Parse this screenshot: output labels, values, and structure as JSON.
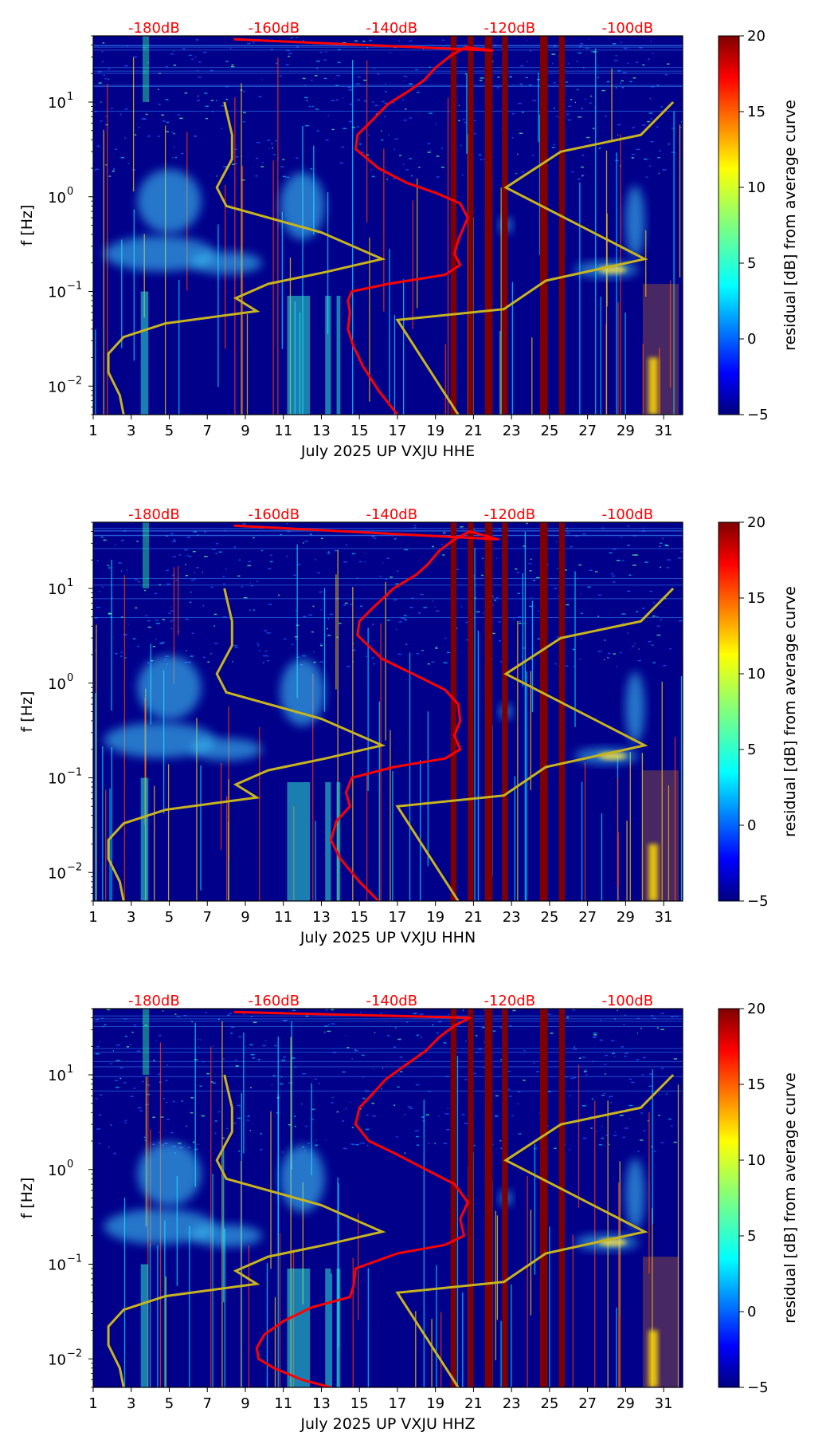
{
  "colors": {
    "spectrogram_background": "#00008b",
    "noise_curve": "#ff0000",
    "reference_model": "#c8b41e",
    "gap_band": "#800000",
    "colormap": "jet"
  },
  "colorbar": {
    "label": "residual [dB] from average curve",
    "min": -5,
    "max": 20,
    "ticks": [
      {
        "value": -5,
        "label": "−5"
      },
      {
        "value": 0,
        "label": "0"
      },
      {
        "value": 5,
        "label": "5"
      },
      {
        "value": 10,
        "label": "10"
      },
      {
        "value": 15,
        "label": "15"
      },
      {
        "value": 20,
        "label": "20"
      }
    ]
  },
  "chart_data": [
    {
      "type": "heatmap",
      "channel": "HHE",
      "title": "",
      "xlabel": "July 2025 UP VXJU  HHE",
      "ylabel": "f [Hz]",
      "xlim": [
        1,
        32
      ],
      "ylim": [
        0.005,
        50
      ],
      "yscale": "log",
      "xticks": [
        1,
        3,
        5,
        7,
        9,
        11,
        13,
        15,
        17,
        19,
        21,
        23,
        25,
        27,
        29,
        31
      ],
      "yticks": [
        {
          "value": 0.01,
          "base": "10",
          "exp": "−2"
        },
        {
          "value": 0.1,
          "base": "10",
          "exp": "−1"
        },
        {
          "value": 1,
          "base": "10",
          "exp": "0"
        },
        {
          "value": 10,
          "base": "10",
          "exp": "1"
        }
      ],
      "db_scale": [
        {
          "label": "-180dB",
          "day": 4.2
        },
        {
          "label": "-160dB",
          "day": 10.5
        },
        {
          "label": "-140dB",
          "day": 16.7
        },
        {
          "label": "-120dB",
          "day": 22.9
        },
        {
          "label": "-100dB",
          "day": 29.1
        }
      ],
      "gap_bands": [
        [
          19.8,
          20.1
        ],
        [
          20.7,
          21.0
        ],
        [
          21.6,
          22.0
        ],
        [
          22.5,
          22.8
        ],
        [
          24.5,
          24.9
        ],
        [
          25.5,
          25.8
        ]
      ],
      "noise_curve": [
        [
          17.0,
          0.005
        ],
        [
          16.0,
          0.009
        ],
        [
          15.2,
          0.016
        ],
        [
          14.7,
          0.026
        ],
        [
          14.4,
          0.04
        ],
        [
          14.5,
          0.06
        ],
        [
          14.4,
          0.08
        ],
        [
          14.6,
          0.1
        ],
        [
          16.5,
          0.12
        ],
        [
          19.5,
          0.15
        ],
        [
          20.3,
          0.19
        ],
        [
          20.0,
          0.25
        ],
        [
          20.2,
          0.35
        ],
        [
          20.7,
          0.6
        ],
        [
          20.3,
          0.85
        ],
        [
          19.0,
          1.1
        ],
        [
          17.5,
          1.4
        ],
        [
          16.0,
          2.0
        ],
        [
          14.8,
          3.2
        ],
        [
          14.9,
          4.5
        ],
        [
          15.7,
          6.5
        ],
        [
          16.5,
          9.5
        ],
        [
          17.7,
          13.5
        ],
        [
          18.4,
          17
        ],
        [
          19.0,
          23
        ],
        [
          19.8,
          31
        ],
        [
          20.6,
          38
        ],
        [
          22.0,
          35
        ],
        [
          8.4,
          46
        ]
      ],
      "reference_model": [
        [
          2.6,
          0.005
        ],
        [
          2.4,
          0.008
        ],
        [
          1.8,
          0.014
        ],
        [
          1.8,
          0.022
        ],
        [
          2.6,
          0.033
        ],
        [
          4.8,
          0.046
        ],
        [
          9.6,
          0.062
        ],
        [
          8.5,
          0.085
        ],
        [
          10.2,
          0.12
        ],
        [
          13.2,
          0.16
        ],
        [
          16.2,
          0.22
        ],
        [
          13.0,
          0.42
        ],
        [
          8.0,
          0.8
        ],
        [
          7.5,
          1.25
        ],
        [
          8.3,
          2.5
        ],
        [
          8.3,
          4.5
        ],
        [
          7.9,
          10
        ]
      ],
      "reference_model_right": [
        [
          20.2,
          0.005
        ],
        [
          17.0,
          0.05
        ],
        [
          22.6,
          0.065
        ],
        [
          24.8,
          0.13
        ],
        [
          30.0,
          0.22
        ],
        [
          22.7,
          1.25
        ],
        [
          25.6,
          3.0
        ],
        [
          29.8,
          4.5
        ],
        [
          31.5,
          10
        ]
      ]
    },
    {
      "type": "heatmap",
      "channel": "HHN",
      "title": "",
      "xlabel": "July 2025 UP VXJU  HHN",
      "ylabel": "f [Hz]",
      "xlim": [
        1,
        32
      ],
      "ylim": [
        0.005,
        50
      ],
      "yscale": "log",
      "xticks": [
        1,
        3,
        5,
        7,
        9,
        11,
        13,
        15,
        17,
        19,
        21,
        23,
        25,
        27,
        29,
        31
      ],
      "yticks": [
        {
          "value": 0.01,
          "base": "10",
          "exp": "−2"
        },
        {
          "value": 0.1,
          "base": "10",
          "exp": "−1"
        },
        {
          "value": 1,
          "base": "10",
          "exp": "0"
        },
        {
          "value": 10,
          "base": "10",
          "exp": "1"
        }
      ],
      "db_scale": [
        {
          "label": "-180dB",
          "day": 4.2
        },
        {
          "label": "-160dB",
          "day": 10.5
        },
        {
          "label": "-140dB",
          "day": 16.7
        },
        {
          "label": "-120dB",
          "day": 22.9
        },
        {
          "label": "-100dB",
          "day": 29.1
        }
      ],
      "gap_bands": [
        [
          19.8,
          20.1
        ],
        [
          20.7,
          21.0
        ],
        [
          21.6,
          22.0
        ],
        [
          22.5,
          22.8
        ],
        [
          24.5,
          24.9
        ],
        [
          25.5,
          25.8
        ]
      ],
      "noise_curve": [
        [
          16.0,
          0.005
        ],
        [
          15.0,
          0.008
        ],
        [
          14.0,
          0.014
        ],
        [
          13.5,
          0.022
        ],
        [
          13.8,
          0.035
        ],
        [
          14.5,
          0.05
        ],
        [
          14.3,
          0.07
        ],
        [
          14.6,
          0.1
        ],
        [
          16.8,
          0.13
        ],
        [
          19.5,
          0.16
        ],
        [
          20.3,
          0.2
        ],
        [
          20.0,
          0.28
        ],
        [
          20.3,
          0.4
        ],
        [
          20.2,
          0.6
        ],
        [
          19.5,
          0.85
        ],
        [
          18.0,
          1.2
        ],
        [
          16.2,
          1.8
        ],
        [
          14.9,
          3.2
        ],
        [
          15.0,
          4.5
        ],
        [
          15.8,
          6.5
        ],
        [
          16.8,
          10
        ],
        [
          18.0,
          14
        ],
        [
          18.6,
          18
        ],
        [
          19.2,
          25
        ],
        [
          20.0,
          33
        ],
        [
          20.8,
          40
        ],
        [
          22.3,
          33
        ],
        [
          8.4,
          46
        ]
      ],
      "reference_model": [
        [
          2.6,
          0.005
        ],
        [
          2.4,
          0.008
        ],
        [
          1.8,
          0.014
        ],
        [
          1.8,
          0.022
        ],
        [
          2.6,
          0.033
        ],
        [
          4.8,
          0.046
        ],
        [
          9.6,
          0.062
        ],
        [
          8.5,
          0.085
        ],
        [
          10.2,
          0.12
        ],
        [
          13.2,
          0.16
        ],
        [
          16.2,
          0.22
        ],
        [
          13.0,
          0.42
        ],
        [
          8.0,
          0.8
        ],
        [
          7.5,
          1.25
        ],
        [
          8.3,
          2.5
        ],
        [
          8.3,
          4.5
        ],
        [
          7.9,
          10
        ]
      ],
      "reference_model_right": [
        [
          20.2,
          0.005
        ],
        [
          17.0,
          0.05
        ],
        [
          22.6,
          0.065
        ],
        [
          24.8,
          0.13
        ],
        [
          30.0,
          0.22
        ],
        [
          22.7,
          1.25
        ],
        [
          25.6,
          3.0
        ],
        [
          29.8,
          4.5
        ],
        [
          31.5,
          10
        ]
      ]
    },
    {
      "type": "heatmap",
      "channel": "HHZ",
      "title": "",
      "xlabel": "July 2025 UP VXJU  HHZ",
      "ylabel": "f [Hz]",
      "xlim": [
        1,
        32
      ],
      "ylim": [
        0.005,
        50
      ],
      "yscale": "log",
      "xticks": [
        1,
        3,
        5,
        7,
        9,
        11,
        13,
        15,
        17,
        19,
        21,
        23,
        25,
        27,
        29,
        31
      ],
      "yticks": [
        {
          "value": 0.01,
          "base": "10",
          "exp": "−2"
        },
        {
          "value": 0.1,
          "base": "10",
          "exp": "−1"
        },
        {
          "value": 1,
          "base": "10",
          "exp": "0"
        },
        {
          "value": 10,
          "base": "10",
          "exp": "1"
        }
      ],
      "db_scale": [
        {
          "label": "-180dB",
          "day": 4.2
        },
        {
          "label": "-160dB",
          "day": 10.5
        },
        {
          "label": "-140dB",
          "day": 16.7
        },
        {
          "label": "-120dB",
          "day": 22.9
        },
        {
          "label": "-100dB",
          "day": 29.1
        }
      ],
      "gap_bands": [
        [
          19.8,
          20.1
        ],
        [
          20.7,
          21.0
        ],
        [
          21.6,
          22.0
        ],
        [
          22.5,
          22.8
        ],
        [
          24.5,
          24.9
        ],
        [
          25.5,
          25.8
        ]
      ],
      "noise_curve": [
        [
          13.5,
          0.005
        ],
        [
          12.0,
          0.006
        ],
        [
          10.5,
          0.008
        ],
        [
          9.7,
          0.01
        ],
        [
          9.6,
          0.013
        ],
        [
          10.0,
          0.018
        ],
        [
          11.0,
          0.025
        ],
        [
          12.5,
          0.035
        ],
        [
          14.5,
          0.045
        ],
        [
          14.7,
          0.06
        ],
        [
          14.8,
          0.09
        ],
        [
          17.0,
          0.13
        ],
        [
          19.5,
          0.16
        ],
        [
          20.5,
          0.2
        ],
        [
          20.3,
          0.3
        ],
        [
          20.7,
          0.45
        ],
        [
          20.0,
          0.7
        ],
        [
          18.5,
          1.0
        ],
        [
          16.8,
          1.5
        ],
        [
          15.5,
          2.0
        ],
        [
          14.8,
          3.0
        ],
        [
          15.0,
          4.5
        ],
        [
          15.6,
          6
        ],
        [
          16.4,
          9
        ],
        [
          17.5,
          13
        ],
        [
          18.5,
          18
        ],
        [
          19.2,
          25
        ],
        [
          20.0,
          33
        ],
        [
          20.8,
          40
        ],
        [
          8.4,
          46
        ]
      ],
      "reference_model": [
        [
          2.6,
          0.005
        ],
        [
          2.4,
          0.008
        ],
        [
          1.8,
          0.014
        ],
        [
          1.8,
          0.022
        ],
        [
          2.6,
          0.033
        ],
        [
          4.8,
          0.046
        ],
        [
          9.6,
          0.062
        ],
        [
          8.5,
          0.085
        ],
        [
          10.2,
          0.12
        ],
        [
          13.2,
          0.16
        ],
        [
          16.2,
          0.22
        ],
        [
          13.0,
          0.42
        ],
        [
          8.0,
          0.8
        ],
        [
          7.5,
          1.25
        ],
        [
          8.3,
          2.5
        ],
        [
          8.3,
          4.5
        ],
        [
          7.9,
          10
        ]
      ],
      "reference_model_right": [
        [
          20.2,
          0.005
        ],
        [
          17.0,
          0.05
        ],
        [
          22.6,
          0.065
        ],
        [
          24.8,
          0.13
        ],
        [
          30.0,
          0.22
        ],
        [
          22.7,
          1.25
        ],
        [
          25.6,
          3.0
        ],
        [
          29.8,
          4.5
        ],
        [
          31.5,
          10
        ]
      ]
    }
  ]
}
